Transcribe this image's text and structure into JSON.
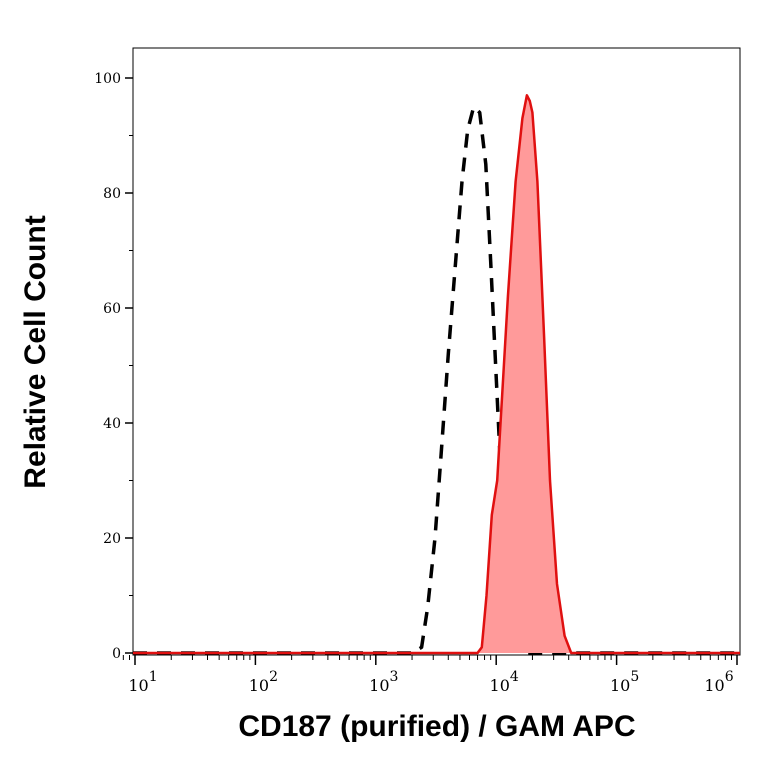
{
  "chart_data": {
    "type": "area",
    "title": "",
    "xlabel": "CD187 (purified) / GAM APC",
    "ylabel": "Relative Cell Count",
    "xscale": "log",
    "xlim": [
      8,
      1200000
    ],
    "ylim": [
      0,
      100
    ],
    "x_ticks": [
      10,
      100,
      1000,
      10000,
      100000,
      1000000
    ],
    "x_tick_labels": [
      {
        "base": "10",
        "exp": "1"
      },
      {
        "base": "10",
        "exp": "2"
      },
      {
        "base": "10",
        "exp": "3"
      },
      {
        "base": "10",
        "exp": "4"
      },
      {
        "base": "10",
        "exp": "5"
      },
      {
        "base": "10",
        "exp": "6"
      }
    ],
    "y_ticks": [
      0,
      20,
      40,
      60,
      80,
      100
    ],
    "grid": false,
    "series": [
      {
        "style": "dashed-line",
        "color": "#000000",
        "points": [
          [
            2000,
            0
          ],
          [
            2400,
            1
          ],
          [
            2700,
            8
          ],
          [
            3100,
            20
          ],
          [
            3500,
            35
          ],
          [
            4000,
            52
          ],
          [
            4600,
            68
          ],
          [
            5200,
            82
          ],
          [
            5800,
            91
          ],
          [
            6500,
            95
          ],
          [
            7300,
            94
          ],
          [
            8200,
            85
          ],
          [
            9000,
            68
          ],
          [
            10000,
            48
          ],
          [
            11000,
            30
          ],
          [
            12000,
            15
          ],
          [
            13500,
            5
          ],
          [
            15000,
            1
          ],
          [
            16500,
            0
          ]
        ]
      },
      {
        "style": "filled",
        "color": "#e01010",
        "fill": "#ff9a9a",
        "points": [
          [
            7000,
            0
          ],
          [
            7600,
            1
          ],
          [
            8300,
            10
          ],
          [
            9200,
            24
          ],
          [
            10200,
            30
          ],
          [
            11000,
            42
          ],
          [
            12500,
            62
          ],
          [
            14500,
            82
          ],
          [
            16500,
            93
          ],
          [
            18000,
            97
          ],
          [
            19000,
            96
          ],
          [
            20000,
            94
          ],
          [
            22000,
            82
          ],
          [
            25000,
            55
          ],
          [
            28000,
            30
          ],
          [
            32000,
            12
          ],
          [
            37000,
            3
          ],
          [
            42000,
            0
          ]
        ]
      }
    ]
  }
}
